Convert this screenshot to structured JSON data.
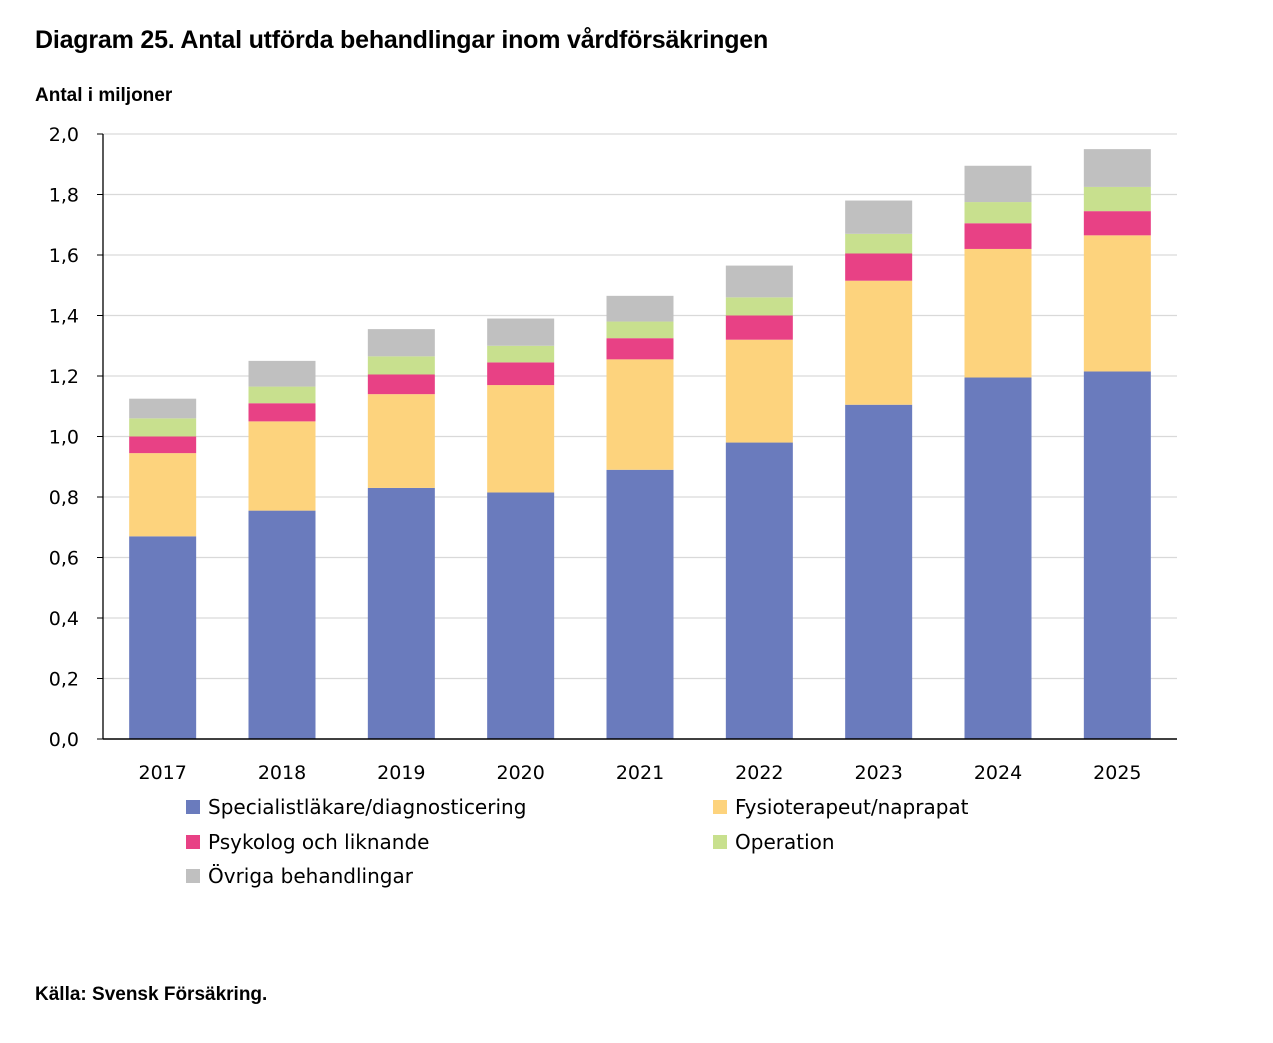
{
  "title": "Diagram 25. Antal utförda behandlingar inom vårdförsäkringen",
  "unit_label": "Antal i miljoner",
  "source": "Källa: Svensk Försäkring.",
  "chart_data": {
    "type": "bar",
    "stacked": true,
    "categories": [
      "2017",
      "2018",
      "2019",
      "2020",
      "2021",
      "2022",
      "2023",
      "2024",
      "2025"
    ],
    "ylim": [
      0,
      2.0
    ],
    "yticks": [
      "0,0",
      "0,2",
      "0,4",
      "0,6",
      "0,8",
      "1,0",
      "1,2",
      "1,4",
      "1,6",
      "1,8",
      "2,0"
    ],
    "grid": true,
    "legend_position": "bottom",
    "series": [
      {
        "name": "Specialistläkare/diagnosticering",
        "color": "#6a7bbd",
        "values": [
          0.67,
          0.755,
          0.83,
          0.815,
          0.89,
          0.98,
          1.105,
          1.195,
          1.215
        ]
      },
      {
        "name": "Fysioterapeut/naprapat",
        "color": "#fdd37d",
        "values": [
          0.275,
          0.295,
          0.31,
          0.355,
          0.365,
          0.34,
          0.41,
          0.425,
          0.45
        ]
      },
      {
        "name": "Psykolog och liknande",
        "color": "#e84185",
        "values": [
          0.055,
          0.06,
          0.065,
          0.075,
          0.07,
          0.08,
          0.09,
          0.085,
          0.08
        ]
      },
      {
        "name": "Operation",
        "color": "#c8e08e",
        "values": [
          0.06,
          0.055,
          0.06,
          0.055,
          0.055,
          0.06,
          0.065,
          0.07,
          0.08
        ]
      },
      {
        "name": "Övriga behandlingar",
        "color": "#c0c0c0",
        "values": [
          0.065,
          0.085,
          0.09,
          0.09,
          0.085,
          0.105,
          0.11,
          0.12,
          0.125
        ]
      }
    ]
  }
}
